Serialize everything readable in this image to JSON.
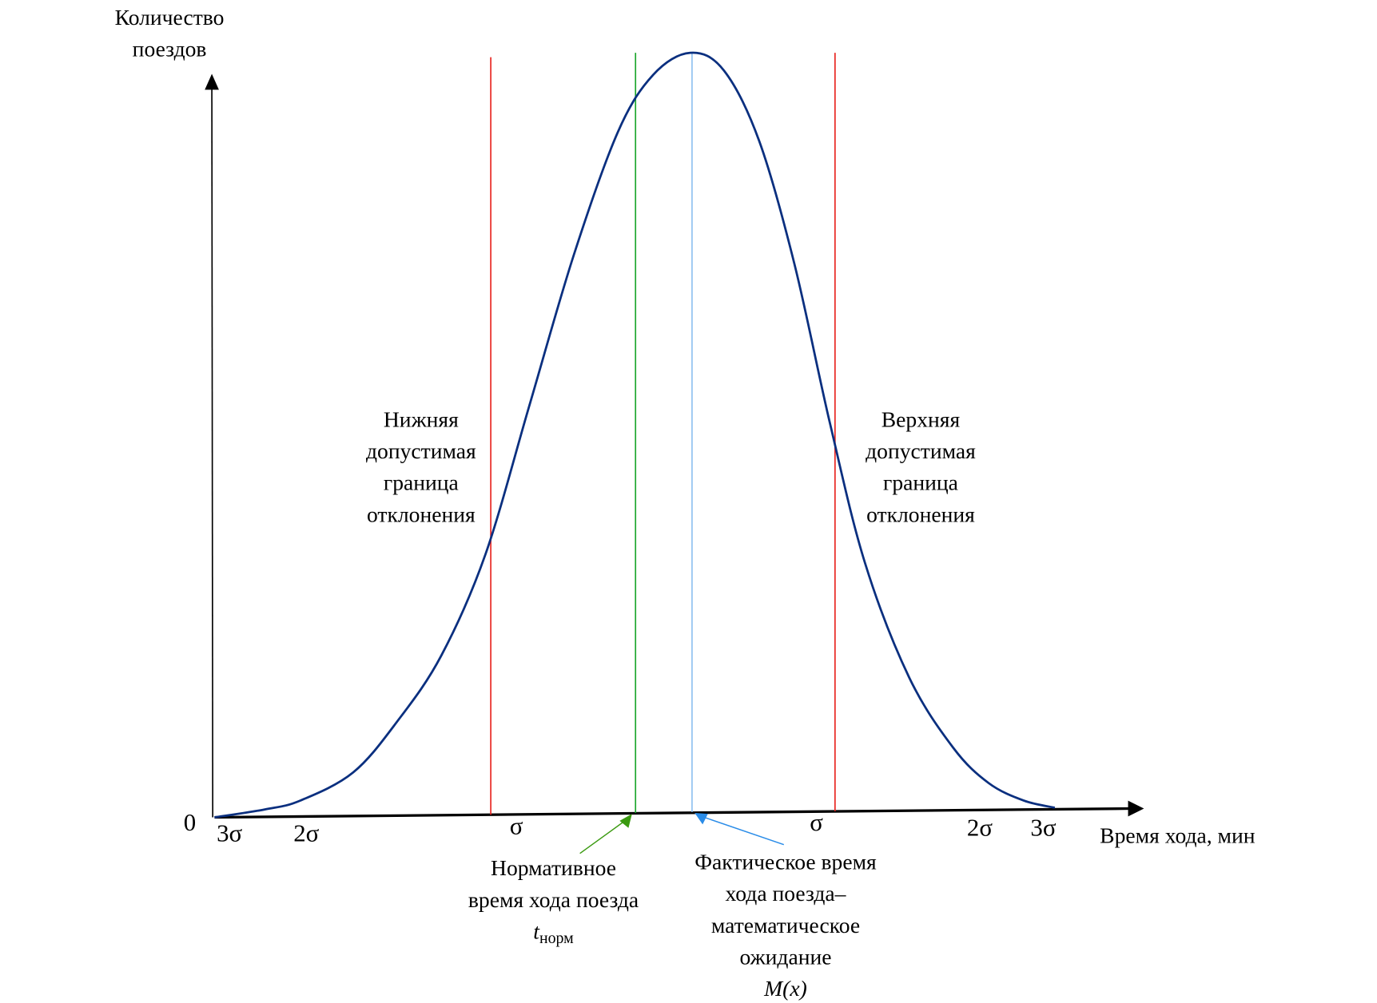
{
  "y_axis_label": [
    "Количество",
    "поездов"
  ],
  "x_axis_label": "Время хода, мин",
  "origin_label": "0",
  "ticks": {
    "left_3s": "3σ",
    "left_2s": "2σ",
    "left_1s": "σ",
    "right_1s": "σ",
    "right_2s": "2σ",
    "right_3s": "3σ"
  },
  "lower_limit_label": [
    "Нижняя",
    "допустимая",
    "граница",
    "отклонения"
  ],
  "upper_limit_label": [
    "Верхняя",
    "допустимая",
    "граница",
    "отклонения"
  ],
  "normative_label": [
    "Нормативное",
    "время хода поезда"
  ],
  "normative_symbol": {
    "main": "t",
    "sub": "норм"
  },
  "actual_label": [
    "Фактическое время",
    "хода поезда–",
    "математическое",
    "ожидание"
  ],
  "actual_symbol": "M(x)",
  "colors": {
    "curve": "#0a2f7f",
    "limits": "#e8231f",
    "normative": "#1aa52a",
    "mean": "#4a90e2",
    "normative_arrow": "#3a9a10",
    "mean_arrow": "#2a8ce8"
  }
}
